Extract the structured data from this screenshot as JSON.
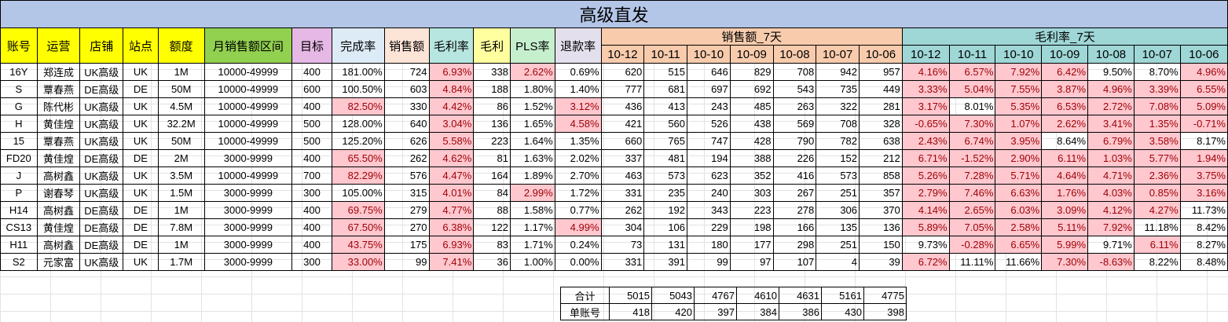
{
  "title": "高级直发",
  "headers": [
    "账号",
    "运营",
    "店铺",
    "站点",
    "额度",
    "月销售额区间",
    "目标",
    "完成率",
    "销售额",
    "毛利率",
    "毛利",
    "PLS率",
    "退款率"
  ],
  "header_colors": [
    "#ffff00",
    "#ffff00",
    "#ffff00",
    "#ffff00",
    "#ffff00",
    "#92d050",
    "#e6b8e6",
    "#ddebf7",
    "#fce4d6",
    "#b7e6e0",
    "#ffffa0",
    "#c6efce",
    "#e4dfec"
  ],
  "group_sales_label": "销售额_7天",
  "group_margin_label": "毛利率_7天",
  "group_sales_color": "#f8cbad",
  "group_margin_color": "#9fd6d6",
  "dates": [
    "10-12",
    "10-11",
    "10-10",
    "10-09",
    "10-08",
    "10-07",
    "10-06"
  ],
  "rows": [
    {
      "cells": [
        "16Y",
        "郑连成",
        "UK高级",
        "UK",
        "1M",
        "10000-49999",
        "400",
        "181.00%",
        "724",
        "6.93%",
        "338",
        "2.62%",
        "0.69%"
      ],
      "sales": [
        "620",
        "515",
        "646",
        "829",
        "708",
        "942",
        "957"
      ],
      "margins": [
        "4.16%",
        "6.57%",
        "7.92%",
        "6.42%",
        "9.50%",
        "8.70%",
        "4.96%"
      ],
      "hl": [
        9,
        11
      ],
      "mhl": [
        0,
        1,
        2,
        3,
        6
      ]
    },
    {
      "cells": [
        "S",
        "覃春燕",
        "DE高级",
        "DE",
        "50M",
        "10000-49999",
        "600",
        "100.50%",
        "603",
        "4.84%",
        "188",
        "1.80%",
        "1.40%"
      ],
      "sales": [
        "777",
        "681",
        "697",
        "692",
        "543",
        "735",
        "449"
      ],
      "margins": [
        "3.33%",
        "5.04%",
        "7.55%",
        "3.87%",
        "4.96%",
        "3.39%",
        "6.55%"
      ],
      "hl": [
        9
      ],
      "mhl": [
        0,
        1,
        2,
        3,
        4,
        5,
        6
      ]
    },
    {
      "cells": [
        "G",
        "陈代彬",
        "UK高级",
        "UK",
        "4.5M",
        "10000-49999",
        "400",
        "82.50%",
        "330",
        "4.42%",
        "86",
        "1.52%",
        "3.12%"
      ],
      "sales": [
        "436",
        "413",
        "243",
        "485",
        "263",
        "322",
        "281"
      ],
      "margins": [
        "3.17%",
        "8.01%",
        "5.35%",
        "6.53%",
        "2.72%",
        "7.08%",
        "5.09%"
      ],
      "hl": [
        7,
        9,
        12
      ],
      "mhl": [
        0,
        2,
        3,
        4,
        5,
        6
      ]
    },
    {
      "cells": [
        "H",
        "黄佳煌",
        "UK高级",
        "UK",
        "32.2M",
        "10000-49999",
        "500",
        "128.00%",
        "640",
        "3.04%",
        "136",
        "1.65%",
        "4.58%"
      ],
      "sales": [
        "421",
        "560",
        "526",
        "438",
        "569",
        "708",
        "328"
      ],
      "margins": [
        "-0.65%",
        "7.30%",
        "1.07%",
        "2.62%",
        "3.41%",
        "1.35%",
        "-0.71%"
      ],
      "hl": [
        9,
        12
      ],
      "mhl": [
        0,
        1,
        2,
        3,
        4,
        5,
        6
      ]
    },
    {
      "cells": [
        "15",
        "覃春燕",
        "UK高级",
        "UK",
        "50M",
        "10000-49999",
        "500",
        "125.20%",
        "626",
        "5.58%",
        "223",
        "1.64%",
        "1.35%"
      ],
      "sales": [
        "660",
        "765",
        "747",
        "428",
        "790",
        "782",
        "638"
      ],
      "margins": [
        "2.43%",
        "6.74%",
        "3.95%",
        "8.64%",
        "6.79%",
        "3.58%",
        "8.17%"
      ],
      "hl": [
        9
      ],
      "mhl": [
        0,
        1,
        2,
        4,
        5
      ]
    },
    {
      "cells": [
        "FD20",
        "黄佳煌",
        "DE高级",
        "DE",
        "2M",
        "3000-9999",
        "400",
        "65.50%",
        "262",
        "4.62%",
        "81",
        "1.63%",
        "2.02%"
      ],
      "sales": [
        "337",
        "481",
        "194",
        "388",
        "226",
        "152",
        "212"
      ],
      "margins": [
        "6.71%",
        "-1.52%",
        "2.90%",
        "6.11%",
        "1.03%",
        "5.77%",
        "1.94%"
      ],
      "hl": [
        7,
        9
      ],
      "mhl": [
        0,
        1,
        2,
        3,
        4,
        5,
        6
      ]
    },
    {
      "cells": [
        "J",
        "高树鑫",
        "UK高级",
        "UK",
        "3.5M",
        "10000-49999",
        "700",
        "82.29%",
        "576",
        "4.47%",
        "164",
        "1.89%",
        "2.70%"
      ],
      "sales": [
        "463",
        "573",
        "623",
        "352",
        "416",
        "573",
        "858"
      ],
      "margins": [
        "5.26%",
        "7.28%",
        "5.71%",
        "4.64%",
        "4.71%",
        "2.36%",
        "3.75%"
      ],
      "hl": [
        7,
        9
      ],
      "mhl": [
        0,
        1,
        2,
        3,
        4,
        5,
        6
      ]
    },
    {
      "cells": [
        "P",
        "谢春琴",
        "UK高级",
        "UK",
        "1.5M",
        "3000-9999",
        "300",
        "105.00%",
        "315",
        "4.01%",
        "84",
        "2.99%",
        "1.72%"
      ],
      "sales": [
        "331",
        "235",
        "240",
        "303",
        "267",
        "251",
        "357"
      ],
      "margins": [
        "2.79%",
        "7.46%",
        "6.63%",
        "1.76%",
        "4.03%",
        "0.85%",
        "3.16%"
      ],
      "hl": [
        9,
        11
      ],
      "mhl": [
        0,
        1,
        2,
        3,
        4,
        5,
        6
      ]
    },
    {
      "cells": [
        "H14",
        "高树鑫",
        "DE高级",
        "DE",
        "1M",
        "3000-9999",
        "400",
        "69.75%",
        "279",
        "4.77%",
        "88",
        "1.58%",
        "0.77%"
      ],
      "sales": [
        "262",
        "192",
        "343",
        "223",
        "278",
        "306",
        "370"
      ],
      "margins": [
        "4.14%",
        "2.65%",
        "6.03%",
        "3.09%",
        "4.12%",
        "4.27%",
        "11.73%"
      ],
      "hl": [
        7,
        9
      ],
      "mhl": [
        0,
        1,
        2,
        3,
        4,
        5
      ]
    },
    {
      "cells": [
        "CS13",
        "黄佳煌",
        "DE高级",
        "DE",
        "7.8M",
        "3000-9999",
        "400",
        "67.50%",
        "270",
        "6.38%",
        "122",
        "1.17%",
        "4.99%"
      ],
      "sales": [
        "304",
        "106",
        "229",
        "198",
        "166",
        "135",
        "136"
      ],
      "margins": [
        "5.89%",
        "7.05%",
        "2.58%",
        "5.11%",
        "7.92%",
        "11.18%",
        "8.42%"
      ],
      "hl": [
        7,
        9,
        12
      ],
      "mhl": [
        0,
        1,
        2,
        3,
        4
      ]
    },
    {
      "cells": [
        "H11",
        "高树鑫",
        "DE高级",
        "DE",
        "1M",
        "3000-9999",
        "400",
        "43.75%",
        "175",
        "6.93%",
        "83",
        "1.71%",
        "0.24%"
      ],
      "sales": [
        "73",
        "131",
        "180",
        "177",
        "298",
        "251",
        "150"
      ],
      "margins": [
        "9.73%",
        "-0.28%",
        "6.65%",
        "5.99%",
        "9.71%",
        "6.11%",
        "8.27%"
      ],
      "hl": [
        7,
        9
      ],
      "mhl": [
        1,
        2,
        3,
        5
      ]
    },
    {
      "cells": [
        "S2",
        "元家富",
        "UK高级",
        "UK",
        "1.7M",
        "3000-9999",
        "300",
        "33.00%",
        "99",
        "7.41%",
        "36",
        "1.00%",
        "0.00%"
      ],
      "sales": [
        "331",
        "391",
        "99",
        "97",
        "107",
        "4",
        "39"
      ],
      "margins": [
        "6.72%",
        "11.11%",
        "11.66%",
        "7.30%",
        "-8.63%",
        "8.22%",
        "8.48%"
      ],
      "hl": [
        7,
        9
      ],
      "mhl": [
        0,
        3,
        4
      ]
    }
  ],
  "total_label": "合计",
  "total_values": [
    "5015",
    "5043",
    "4767",
    "4610",
    "4631",
    "5161",
    "4775"
  ],
  "per_label": "单账号",
  "per_values": [
    "418",
    "420",
    "397",
    "384",
    "386",
    "430",
    "398"
  ]
}
